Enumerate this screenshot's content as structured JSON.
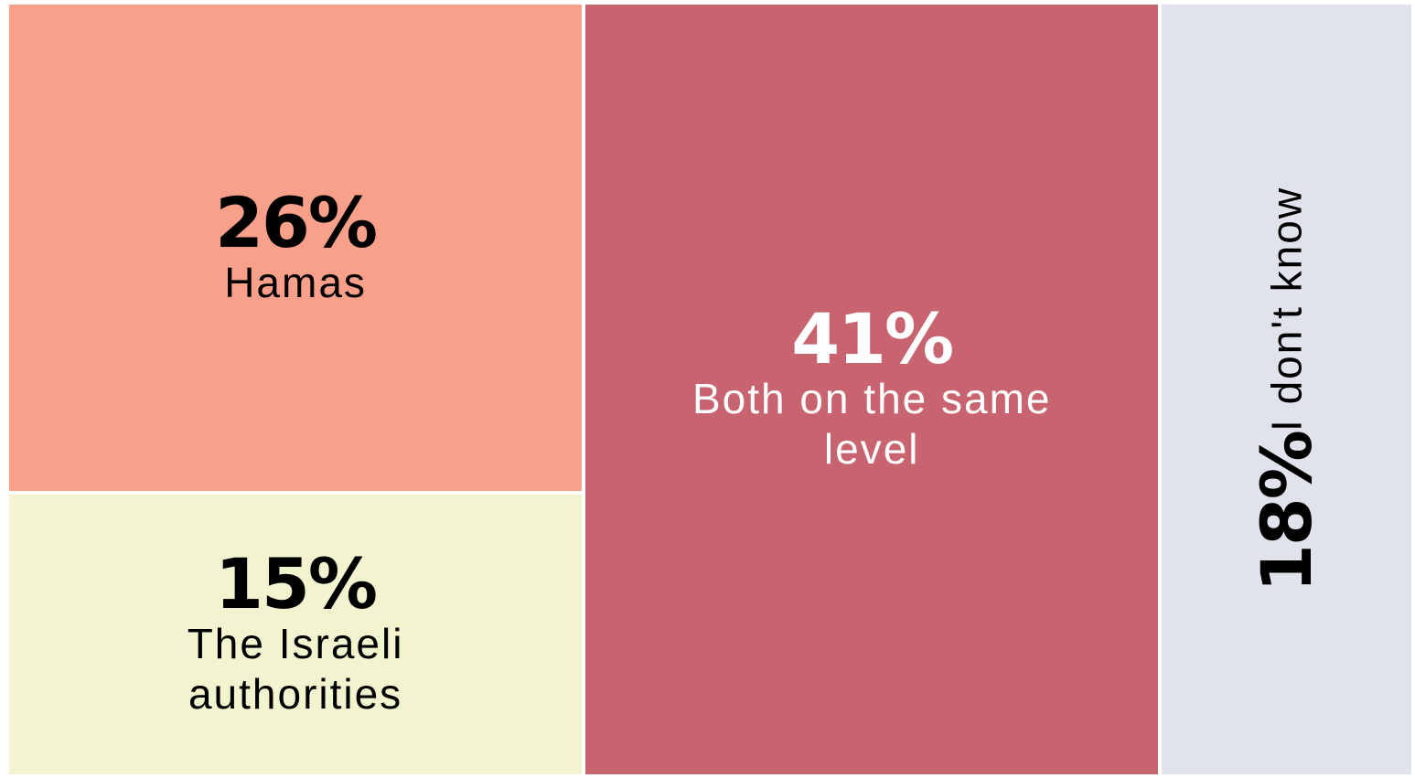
{
  "chart_data": {
    "type": "treemap",
    "categories": [
      "Hamas",
      "The Israeli authorities",
      "Both on the same level",
      "I don't know"
    ],
    "values": [
      26,
      15,
      41,
      18
    ],
    "value_labels": [
      "26%",
      "15%",
      "41%",
      "18%"
    ],
    "colors": [
      "#f9a08b",
      "#f1f4cf",
      "#c76470",
      "#e1e3ec"
    ]
  }
}
